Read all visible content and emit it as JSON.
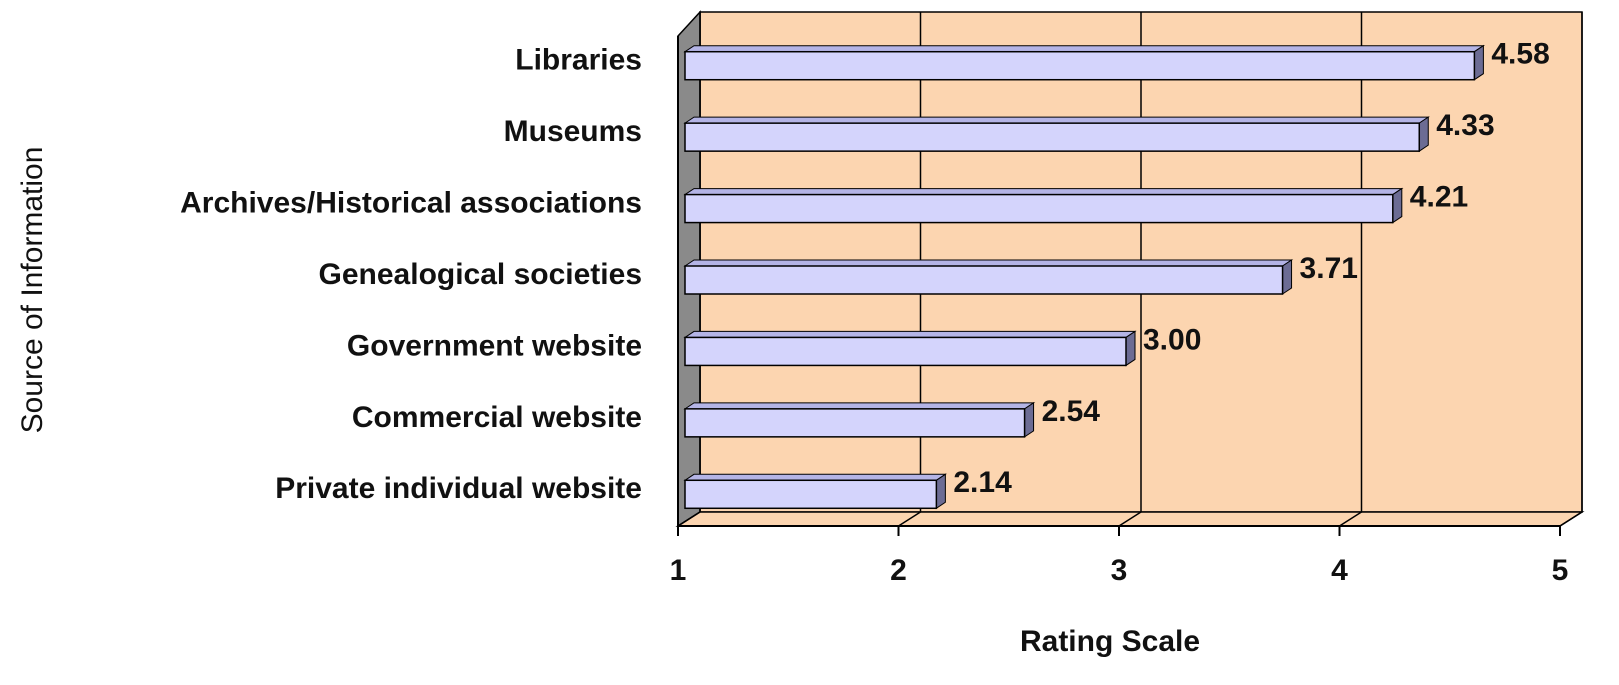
{
  "chart_data": {
    "type": "bar",
    "orientation": "horizontal",
    "x_label": "Rating Scale",
    "y_label": "Source of Information",
    "categories": [
      "Libraries",
      "Museums",
      "Archives/Historical associations",
      "Genealogical societies",
      "Government website",
      "Commercial website",
      "Private individual website"
    ],
    "values": [
      4.58,
      4.33,
      4.21,
      3.71,
      3.0,
      2.54,
      2.14
    ],
    "value_labels": [
      "4.58",
      "4.33",
      "4.21",
      "3.71",
      "3.00",
      "2.54",
      "2.14"
    ],
    "color": "#d4d4fc",
    "background": "#fcd5b0",
    "xlim": [
      1,
      5
    ],
    "xticks": [
      1,
      2,
      3,
      4,
      5
    ],
    "grid": true
  }
}
